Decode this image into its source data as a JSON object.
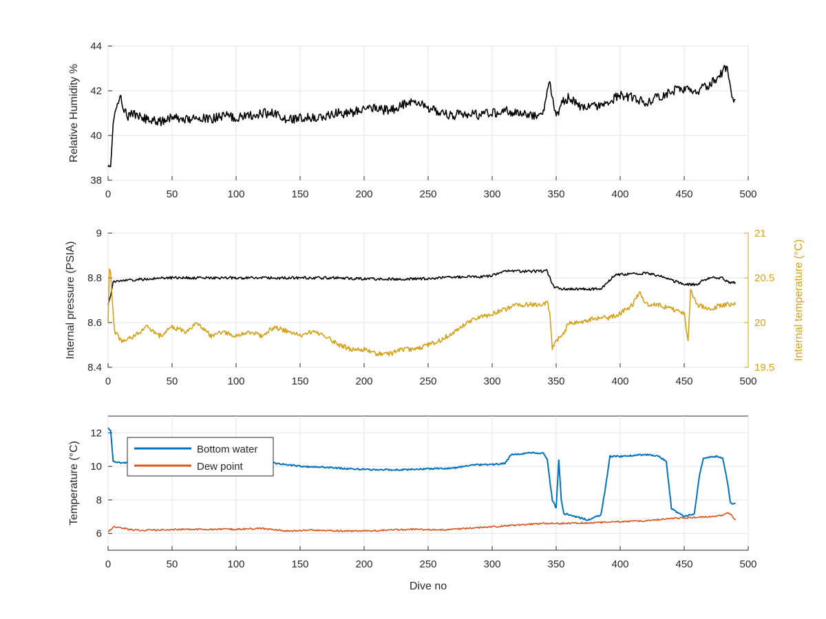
{
  "chart_data": [
    {
      "type": "line",
      "title": "",
      "xlabel": "",
      "ylabel": "Relative Humidity %",
      "xlim": [
        0,
        500
      ],
      "ylim": [
        38,
        44
      ],
      "xticks": [
        0,
        50,
        100,
        150,
        200,
        250,
        300,
        350,
        400,
        450,
        500
      ],
      "yticks": [
        38,
        40,
        42,
        44
      ],
      "grid": true,
      "series": [
        {
          "color": "#000000",
          "points": [
            [
              0,
              38.6
            ],
            [
              2,
              38.8
            ],
            [
              4,
              40.6
            ],
            [
              6,
              41.1
            ],
            [
              8,
              41.5
            ],
            [
              10,
              41.6
            ],
            [
              15,
              40.8
            ],
            [
              20,
              41.0
            ],
            [
              30,
              40.7
            ],
            [
              40,
              40.6
            ],
            [
              50,
              40.8
            ],
            [
              60,
              40.7
            ],
            [
              70,
              40.8
            ],
            [
              80,
              40.7
            ],
            [
              90,
              40.9
            ],
            [
              100,
              40.8
            ],
            [
              110,
              40.9
            ],
            [
              120,
              41.0
            ],
            [
              130,
              41.0
            ],
            [
              140,
              40.7
            ],
            [
              150,
              40.8
            ],
            [
              160,
              40.8
            ],
            [
              170,
              40.9
            ],
            [
              180,
              41.0
            ],
            [
              190,
              41.0
            ],
            [
              200,
              41.2
            ],
            [
              210,
              41.2
            ],
            [
              220,
              41.1
            ],
            [
              230,
              41.4
            ],
            [
              240,
              41.5
            ],
            [
              250,
              41.2
            ],
            [
              260,
              41.0
            ],
            [
              270,
              40.9
            ],
            [
              280,
              41.0
            ],
            [
              290,
              40.9
            ],
            [
              300,
              41.0
            ],
            [
              310,
              41.1
            ],
            [
              320,
              41.0
            ],
            [
              330,
              40.9
            ],
            [
              340,
              41.0
            ],
            [
              343,
              41.9
            ],
            [
              345,
              42.4
            ],
            [
              348,
              41.5
            ],
            [
              350,
              40.8
            ],
            [
              355,
              41.5
            ],
            [
              360,
              41.7
            ],
            [
              370,
              41.2
            ],
            [
              380,
              41.3
            ],
            [
              390,
              41.5
            ],
            [
              400,
              41.8
            ],
            [
              410,
              41.7
            ],
            [
              420,
              41.5
            ],
            [
              430,
              41.7
            ],
            [
              440,
              42.0
            ],
            [
              450,
              42.1
            ],
            [
              460,
              42.0
            ],
            [
              470,
              42.3
            ],
            [
              480,
              42.8
            ],
            [
              483,
              43.1
            ],
            [
              486,
              42.1
            ],
            [
              488,
              41.7
            ],
            [
              490,
              41.6
            ]
          ]
        }
      ]
    },
    {
      "type": "line",
      "title": "",
      "xlabel": "",
      "ylabel": "Internal pressure (PSIA)",
      "ylabel_right": "Internal temperature (°C)",
      "xlim": [
        0,
        500
      ],
      "ylim": [
        8.4,
        9
      ],
      "ylim_right": [
        19.5,
        21
      ],
      "xticks": [
        0,
        50,
        100,
        150,
        200,
        250,
        300,
        350,
        400,
        450,
        500
      ],
      "yticks": [
        8.4,
        8.6,
        8.8,
        9
      ],
      "yticks_right": [
        19.5,
        20,
        20.5,
        21
      ],
      "grid": true,
      "series": [
        {
          "axis": "left",
          "color": "#000000",
          "points": [
            [
              0,
              8.68
            ],
            [
              2,
              8.72
            ],
            [
              4,
              8.78
            ],
            [
              10,
              8.79
            ],
            [
              20,
              8.79
            ],
            [
              40,
              8.8
            ],
            [
              60,
              8.8
            ],
            [
              80,
              8.8
            ],
            [
              100,
              8.8
            ],
            [
              120,
              8.8
            ],
            [
              140,
              8.8
            ],
            [
              160,
              8.8
            ],
            [
              180,
              8.8
            ],
            [
              200,
              8.795
            ],
            [
              220,
              8.795
            ],
            [
              240,
              8.795
            ],
            [
              260,
              8.8
            ],
            [
              280,
              8.805
            ],
            [
              290,
              8.805
            ],
            [
              300,
              8.81
            ],
            [
              310,
              8.83
            ],
            [
              320,
              8.83
            ],
            [
              330,
              8.83
            ],
            [
              340,
              8.83
            ],
            [
              342,
              8.84
            ],
            [
              345,
              8.8
            ],
            [
              348,
              8.76
            ],
            [
              355,
              8.75
            ],
            [
              370,
              8.75
            ],
            [
              385,
              8.75
            ],
            [
              390,
              8.78
            ],
            [
              395,
              8.81
            ],
            [
              400,
              8.815
            ],
            [
              410,
              8.82
            ],
            [
              420,
              8.82
            ],
            [
              430,
              8.81
            ],
            [
              440,
              8.79
            ],
            [
              450,
              8.77
            ],
            [
              460,
              8.77
            ],
            [
              465,
              8.79
            ],
            [
              470,
              8.8
            ],
            [
              480,
              8.8
            ],
            [
              485,
              8.78
            ],
            [
              490,
              8.78
            ]
          ]
        },
        {
          "axis": "right",
          "color": "#D4A017",
          "points": [
            [
              0,
              20.0
            ],
            [
              1,
              20.6
            ],
            [
              2,
              20.55
            ],
            [
              3,
              20.3
            ],
            [
              5,
              19.9
            ],
            [
              10,
              19.8
            ],
            [
              20,
              19.85
            ],
            [
              30,
              19.95
            ],
            [
              40,
              19.85
            ],
            [
              50,
              19.95
            ],
            [
              60,
              19.9
            ],
            [
              70,
              20.0
            ],
            [
              80,
              19.85
            ],
            [
              90,
              19.9
            ],
            [
              100,
              19.85
            ],
            [
              110,
              19.9
            ],
            [
              120,
              19.85
            ],
            [
              130,
              19.95
            ],
            [
              140,
              19.9
            ],
            [
              150,
              19.85
            ],
            [
              160,
              19.9
            ],
            [
              170,
              19.85
            ],
            [
              180,
              19.75
            ],
            [
              190,
              19.7
            ],
            [
              200,
              19.7
            ],
            [
              210,
              19.65
            ],
            [
              220,
              19.65
            ],
            [
              230,
              19.7
            ],
            [
              240,
              19.7
            ],
            [
              250,
              19.75
            ],
            [
              260,
              19.8
            ],
            [
              270,
              19.9
            ],
            [
              280,
              20.0
            ],
            [
              290,
              20.05
            ],
            [
              300,
              20.1
            ],
            [
              310,
              20.15
            ],
            [
              320,
              20.2
            ],
            [
              330,
              20.2
            ],
            [
              340,
              20.2
            ],
            [
              343,
              20.25
            ],
            [
              345,
              20.1
            ],
            [
              347,
              19.7
            ],
            [
              350,
              19.8
            ],
            [
              355,
              19.85
            ],
            [
              360,
              20.0
            ],
            [
              370,
              20.0
            ],
            [
              380,
              20.05
            ],
            [
              390,
              20.05
            ],
            [
              400,
              20.1
            ],
            [
              410,
              20.2
            ],
            [
              415,
              20.35
            ],
            [
              420,
              20.2
            ],
            [
              430,
              20.2
            ],
            [
              440,
              20.15
            ],
            [
              450,
              20.1
            ],
            [
              453,
              19.8
            ],
            [
              455,
              20.35
            ],
            [
              460,
              20.2
            ],
            [
              470,
              20.15
            ],
            [
              480,
              20.2
            ],
            [
              490,
              20.2
            ]
          ]
        }
      ]
    },
    {
      "type": "line",
      "title": "",
      "xlabel": "Dive no",
      "ylabel": "Temperature (°C)",
      "xlim": [
        0,
        500
      ],
      "ylim": [
        5,
        13
      ],
      "xticks": [
        0,
        50,
        100,
        150,
        200,
        250,
        300,
        350,
        400,
        450,
        500
      ],
      "yticks": [
        6,
        8,
        10,
        12
      ],
      "grid": true,
      "legend": "top-left",
      "series": [
        {
          "name": "Bottom water",
          "color": "#0072BD",
          "points": [
            [
              0,
              12.3
            ],
            [
              2,
              12.1
            ],
            [
              4,
              10.3
            ],
            [
              10,
              10.2
            ],
            [
              30,
              10.2
            ],
            [
              50,
              10.4
            ],
            [
              70,
              10.3
            ],
            [
              90,
              10.3
            ],
            [
              110,
              10.2
            ],
            [
              130,
              10.2
            ],
            [
              150,
              10.0
            ],
            [
              170,
              9.95
            ],
            [
              190,
              9.85
            ],
            [
              210,
              9.8
            ],
            [
              230,
              9.8
            ],
            [
              250,
              9.85
            ],
            [
              270,
              9.9
            ],
            [
              285,
              10.1
            ],
            [
              300,
              10.1
            ],
            [
              310,
              10.2
            ],
            [
              315,
              10.7
            ],
            [
              330,
              10.8
            ],
            [
              340,
              10.8
            ],
            [
              343,
              10.4
            ],
            [
              347,
              8.0
            ],
            [
              350,
              7.5
            ],
            [
              352,
              10.4
            ],
            [
              354,
              8.0
            ],
            [
              356,
              7.2
            ],
            [
              365,
              7.0
            ],
            [
              375,
              6.8
            ],
            [
              385,
              7.1
            ],
            [
              388,
              8.5
            ],
            [
              392,
              10.6
            ],
            [
              400,
              10.6
            ],
            [
              420,
              10.7
            ],
            [
              430,
              10.6
            ],
            [
              436,
              10.3
            ],
            [
              440,
              7.5
            ],
            [
              450,
              7.0
            ],
            [
              458,
              7.2
            ],
            [
              462,
              9.5
            ],
            [
              465,
              10.5
            ],
            [
              475,
              10.6
            ],
            [
              480,
              10.5
            ],
            [
              484,
              9.0
            ],
            [
              486,
              7.8
            ],
            [
              490,
              7.8
            ]
          ]
        },
        {
          "name": "Dew point",
          "color": "#D95319",
          "points": [
            [
              0,
              6.1
            ],
            [
              5,
              6.4
            ],
            [
              20,
              6.2
            ],
            [
              40,
              6.2
            ],
            [
              60,
              6.25
            ],
            [
              80,
              6.25
            ],
            [
              100,
              6.25
            ],
            [
              120,
              6.3
            ],
            [
              140,
              6.15
            ],
            [
              160,
              6.2
            ],
            [
              180,
              6.15
            ],
            [
              200,
              6.15
            ],
            [
              220,
              6.2
            ],
            [
              240,
              6.25
            ],
            [
              260,
              6.2
            ],
            [
              280,
              6.3
            ],
            [
              300,
              6.4
            ],
            [
              320,
              6.5
            ],
            [
              340,
              6.6
            ],
            [
              360,
              6.6
            ],
            [
              380,
              6.65
            ],
            [
              400,
              6.7
            ],
            [
              420,
              6.75
            ],
            [
              440,
              6.9
            ],
            [
              460,
              6.95
            ],
            [
              470,
              7.0
            ],
            [
              480,
              7.1
            ],
            [
              485,
              7.25
            ],
            [
              490,
              6.8
            ]
          ]
        }
      ]
    }
  ]
}
